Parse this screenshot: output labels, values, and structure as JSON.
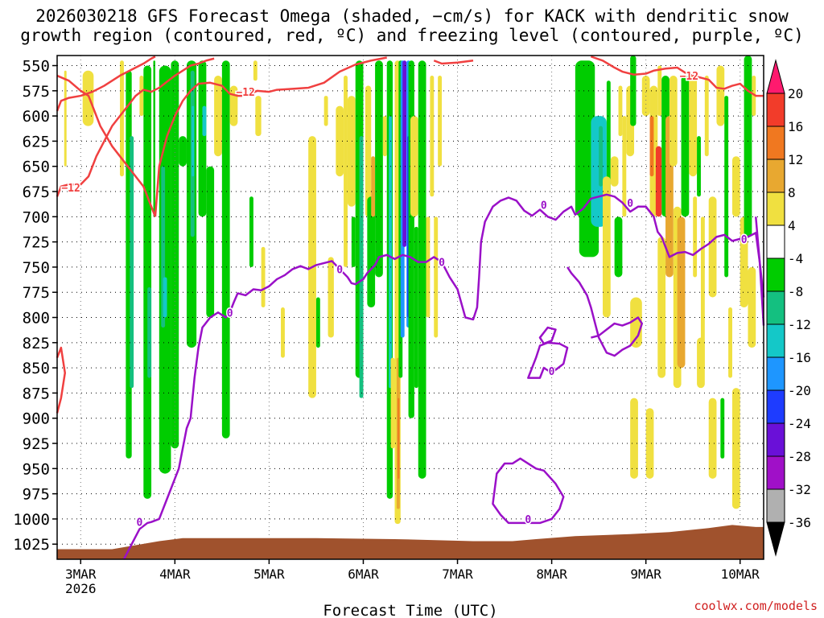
{
  "chart_data": {
    "type": "heatmap",
    "title_line1": "2026030218 GFS Forecast Omega (shaded, −cm/s) for KACK with dendritic snow",
    "title_line2": "growth region (contoured, red, ºC) and freezing level (contoured, purple, ºC)",
    "xlabel": "Forecast Time (UTC)",
    "x_ticks": [
      {
        "t": 0,
        "label": "3MAR",
        "sub": "2026"
      },
      {
        "t": 24,
        "label": "4MAR"
      },
      {
        "t": 48,
        "label": "5MAR"
      },
      {
        "t": 72,
        "label": "6MAR"
      },
      {
        "t": 96,
        "label": "7MAR"
      },
      {
        "t": 120,
        "label": "8MAR"
      },
      {
        "t": 144,
        "label": "9MAR"
      },
      {
        "t": 168,
        "label": "10MAR"
      }
    ],
    "xlim_hours": [
      -6,
      174
    ],
    "y_ticks": [
      550,
      575,
      600,
      625,
      650,
      675,
      700,
      725,
      750,
      775,
      800,
      825,
      850,
      875,
      900,
      925,
      950,
      975,
      1000,
      1025
    ],
    "ylim_hPa": [
      540,
      1040
    ],
    "colorbar": {
      "levels": [
        20,
        16,
        12,
        8,
        4,
        -4,
        -8,
        -12,
        -16,
        -20,
        -24,
        -28,
        -32,
        -36
      ],
      "colors": [
        "#ff1a6e",
        "#f23c2a",
        "#f07820",
        "#e8a830",
        "#f0e040",
        "#ffffff",
        "#00cc00",
        "#14c080",
        "#14c8c8",
        "#1e96ff",
        "#1e3cff",
        "#6a10d8",
        "#a010c8",
        "#b0b0b0",
        "#000000"
      ]
    },
    "contour_labels": {
      "dgz": "−12",
      "freezing": "0"
    },
    "colors": {
      "dgz": "#f04040",
      "freezing": "#9a10c8",
      "terrain": "#a0522d"
    },
    "credit": "coolwx.com/models"
  }
}
